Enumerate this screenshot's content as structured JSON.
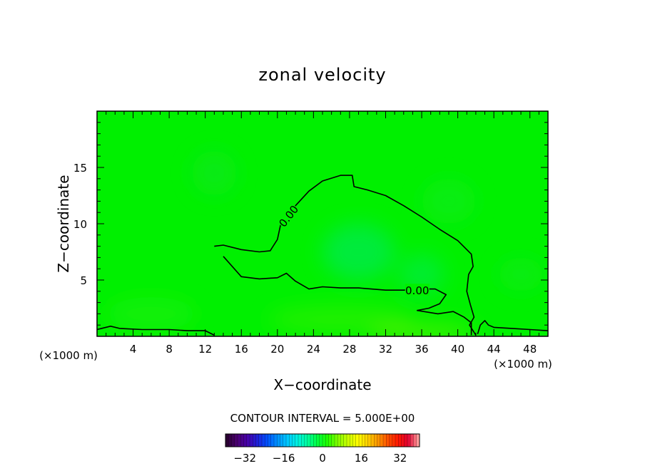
{
  "chart_data": {
    "type": "heatmap",
    "title": "zonal velocity",
    "xlabel": "X−coordinate",
    "ylabel": "Z−coordinate",
    "x_unit_left": "(×1000 m)",
    "x_unit_right": "(×1000 m)",
    "xlim": [
      0,
      50
    ],
    "ylim": [
      0,
      20
    ],
    "x_ticks": [
      4,
      8,
      12,
      16,
      20,
      24,
      28,
      32,
      36,
      40,
      44,
      48
    ],
    "y_ticks": [
      5,
      10,
      15
    ],
    "contour_interval_text": "CONTOUR INTERVAL = 5.000E+00",
    "contour_levels": [
      {
        "label": "0.00",
        "label_positions": [
          {
            "x": 21.2,
            "y": 10.7,
            "angle": -52
          },
          {
            "x": 35.5,
            "y": 4.1,
            "angle": 0
          }
        ],
        "path": [
          [
            13,
            8
          ],
          [
            14,
            8.1
          ],
          [
            16,
            7.7
          ],
          [
            18,
            7.5
          ],
          [
            19.2,
            7.6
          ],
          [
            20,
            8.6
          ],
          [
            20.4,
            10.1
          ],
          [
            22,
            11.6
          ],
          [
            23.5,
            12.9
          ],
          [
            25,
            13.8
          ],
          [
            27,
            14.3
          ],
          [
            28.3,
            14.3
          ],
          [
            28.5,
            13.3
          ],
          [
            30,
            13.0
          ],
          [
            32,
            12.5
          ],
          [
            34,
            11.6
          ],
          [
            36,
            10.6
          ],
          [
            38,
            9.5
          ],
          [
            40,
            8.5
          ],
          [
            41.5,
            7.3
          ],
          [
            41.7,
            6.2
          ],
          [
            41.2,
            5.5
          ],
          [
            41.0,
            4.0
          ],
          [
            41.4,
            2.8
          ],
          [
            41.8,
            1.7
          ],
          [
            41.3,
            1.0
          ],
          [
            42.0,
            0.1
          ]
        ]
      },
      {
        "label": "",
        "path": [
          [
            14,
            7.1
          ],
          [
            16,
            5.3
          ],
          [
            18,
            5.1
          ],
          [
            20,
            5.2
          ],
          [
            21,
            5.6
          ],
          [
            22,
            4.9
          ],
          [
            23.5,
            4.2
          ],
          [
            25,
            4.4
          ],
          [
            27,
            4.3
          ],
          [
            29,
            4.3
          ],
          [
            32,
            4.1
          ],
          [
            34,
            4.1
          ],
          [
            36,
            4.2
          ],
          [
            37.5,
            4.2
          ],
          [
            38.7,
            3.7
          ],
          [
            38.0,
            2.9
          ],
          [
            36.8,
            2.5
          ],
          [
            35.5,
            2.3
          ],
          [
            37.8,
            2.0
          ],
          [
            39.5,
            2.2
          ],
          [
            40.7,
            1.7
          ],
          [
            41.5,
            1.2
          ],
          [
            41.5,
            0.1
          ]
        ]
      },
      {
        "label": "",
        "path": [
          [
            0,
            0.6
          ],
          [
            1.5,
            0.9
          ],
          [
            2.5,
            0.7
          ],
          [
            5,
            0.6
          ],
          [
            8,
            0.6
          ],
          [
            10,
            0.5
          ],
          [
            12,
            0.5
          ],
          [
            13,
            0.1
          ]
        ]
      },
      {
        "label": "",
        "path": [
          [
            42.2,
            0.2
          ],
          [
            42.5,
            1.0
          ],
          [
            43,
            1.4
          ],
          [
            43.4,
            1.0
          ],
          [
            44,
            0.8
          ],
          [
            46,
            0.7
          ],
          [
            48,
            0.6
          ],
          [
            50,
            0.5
          ]
        ]
      }
    ],
    "colorbar": {
      "vmin": -40,
      "vmax": 40,
      "tick_values": [
        -32,
        -16,
        0,
        16,
        32
      ],
      "tick_labels": [
        "−32",
        "−16",
        "0",
        "16",
        "32"
      ],
      "colors": [
        "#2a0032",
        "#4a0070",
        "#4800a8",
        "#2020d8",
        "#0050ff",
        "#0090ff",
        "#00c8ff",
        "#00f0e0",
        "#00ffa0",
        "#00ff40",
        "#20ff00",
        "#80ff00",
        "#c8ff00",
        "#ffff00",
        "#ffd000",
        "#ff9800",
        "#ff5000",
        "#ff1800",
        "#e00030",
        "#ff9a9a"
      ]
    },
    "field": {
      "background_color": "#00f000",
      "blobs": [
        {
          "x": 29,
          "y": 7.5,
          "rx": 4,
          "ry": 2.5,
          "color": "#00e86c",
          "opacity": 0.55
        },
        {
          "x": 36,
          "y": 5.5,
          "rx": 2.5,
          "ry": 1.8,
          "color": "#00e868",
          "opacity": 0.45
        },
        {
          "x": 13,
          "y": 14.5,
          "rx": 2.5,
          "ry": 2,
          "color": "#10e040",
          "opacity": 0.35
        },
        {
          "x": 39,
          "y": 12,
          "rx": 3,
          "ry": 2,
          "color": "#20e830",
          "opacity": 0.35
        },
        {
          "x": 47,
          "y": 5.5,
          "rx": 2.5,
          "ry": 1.5,
          "color": "#20e430",
          "opacity": 0.35
        },
        {
          "x": 27,
          "y": 1.5,
          "rx": 8,
          "ry": 1.2,
          "color": "#40f000",
          "opacity": 0.5
        },
        {
          "x": 36,
          "y": 0.4,
          "rx": 6,
          "ry": 0.5,
          "color": "#80f000",
          "opacity": 0.7
        },
        {
          "x": 6,
          "y": 2,
          "rx": 5,
          "ry": 1.5,
          "color": "#30f010",
          "opacity": 0.35
        }
      ]
    }
  }
}
